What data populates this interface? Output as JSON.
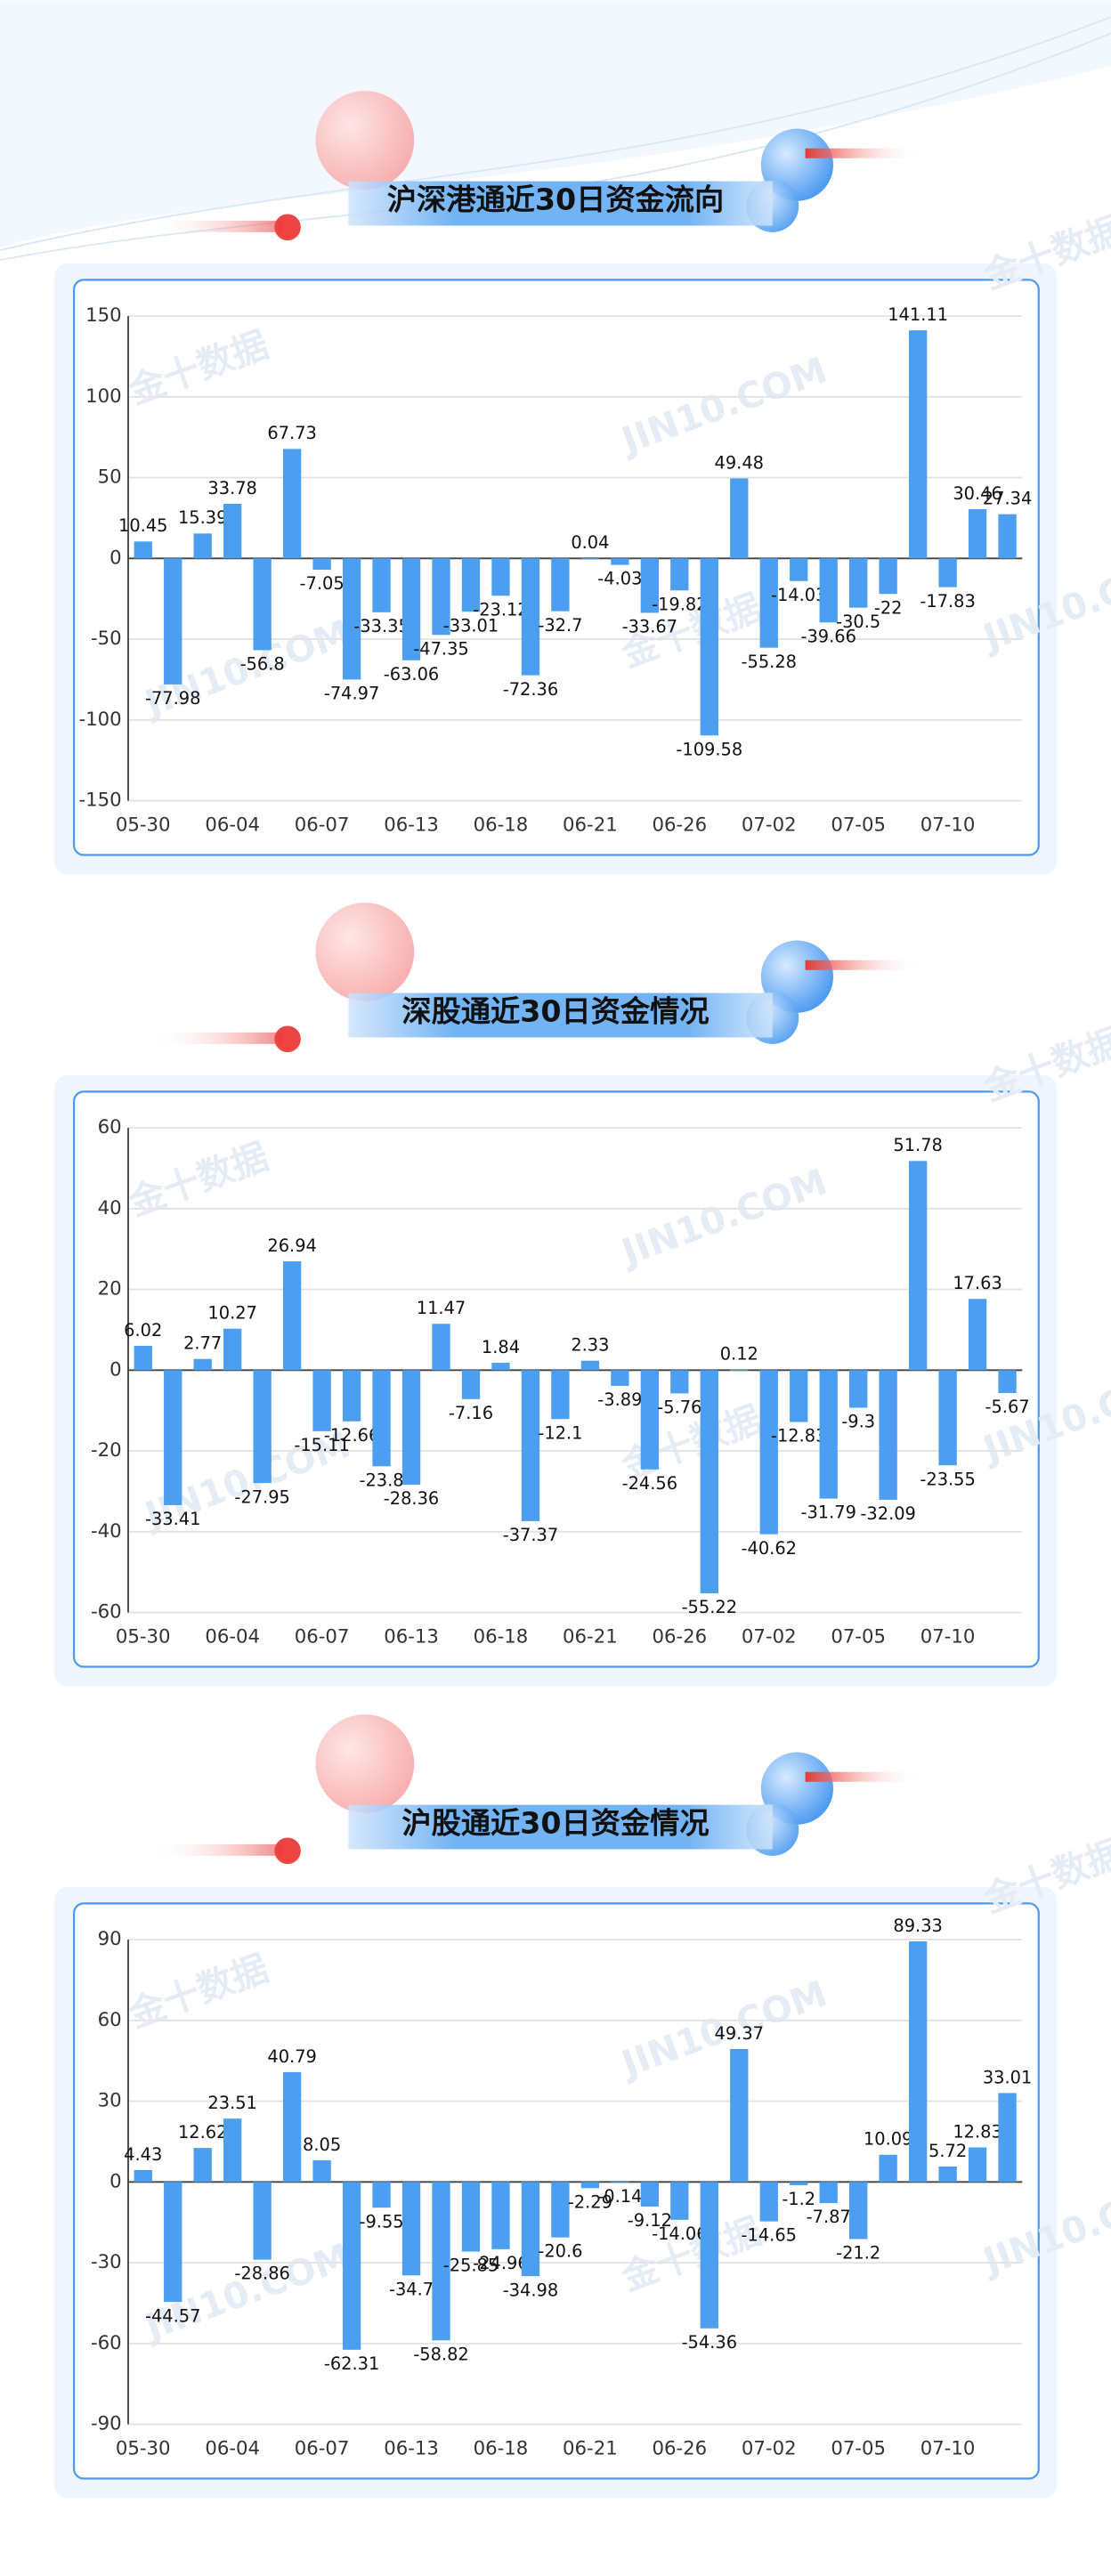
{
  "watermark": [
    "金十数据",
    "JIN10.COM"
  ],
  "chart_data": [
    {
      "type": "bar",
      "title": "沪深港通近30日资金流向",
      "categories": [
        "05-30",
        null,
        null,
        "06-04",
        null,
        null,
        "06-07",
        null,
        null,
        "06-13",
        null,
        null,
        "06-18",
        null,
        null,
        "06-21",
        null,
        null,
        "06-26",
        null,
        null,
        "07-02",
        null,
        null,
        "07-05",
        null,
        null,
        "07-10",
        null,
        null
      ],
      "values": [
        10.45,
        -77.98,
        15.39,
        33.78,
        -56.8,
        67.73,
        -7.05,
        -74.97,
        -33.35,
        -63.06,
        -47.35,
        -33.01,
        -23.12,
        -72.36,
        -32.7,
        0.04,
        -4.03,
        -33.67,
        -19.82,
        -109.58,
        49.48,
        -55.28,
        -14.03,
        -39.66,
        -30.5,
        -22,
        141.11,
        -17.83,
        30.46,
        27.34
      ],
      "color": "#4b9ef0",
      "ylim": [
        -150,
        150
      ],
      "yticks": [
        -150,
        -100,
        -50,
        0,
        50,
        100,
        150
      ],
      "grid": true
    },
    {
      "type": "bar",
      "title": "深股通近30日资金情况",
      "categories": [
        "05-30",
        null,
        null,
        "06-04",
        null,
        null,
        "06-07",
        null,
        null,
        "06-13",
        null,
        null,
        "06-18",
        null,
        null,
        "06-21",
        null,
        null,
        "06-26",
        null,
        null,
        "07-02",
        null,
        null,
        "07-05",
        null,
        null,
        "07-10",
        null,
        null
      ],
      "values": [
        6.02,
        -33.41,
        2.77,
        10.27,
        -27.95,
        26.94,
        -15.11,
        -12.66,
        -23.8,
        -28.36,
        11.47,
        -7.16,
        1.84,
        -37.37,
        -12.1,
        2.33,
        -3.89,
        -24.56,
        -5.76,
        -55.22,
        0.12,
        -40.62,
        -12.83,
        -31.79,
        -9.3,
        -32.09,
        51.78,
        -23.55,
        17.63,
        -5.67
      ],
      "color": "#4b9ef0",
      "ylim": [
        -60,
        60
      ],
      "yticks": [
        -60,
        -40,
        -20,
        0,
        20,
        40,
        60
      ],
      "grid": true
    },
    {
      "type": "bar",
      "title": "沪股通近30日资金情况",
      "categories": [
        "05-30",
        null,
        null,
        "06-04",
        null,
        null,
        "06-07",
        null,
        null,
        "06-13",
        null,
        null,
        "06-18",
        null,
        null,
        "06-21",
        null,
        null,
        "06-26",
        null,
        null,
        "07-02",
        null,
        null,
        "07-05",
        null,
        null,
        "07-10",
        null,
        null
      ],
      "values": [
        4.43,
        -44.57,
        12.62,
        23.51,
        -28.86,
        40.79,
        8.05,
        -62.31,
        -9.55,
        -34.7,
        -58.82,
        -25.85,
        -24.96,
        -34.98,
        -20.6,
        -2.29,
        -0.14,
        -9.12,
        -14.06,
        -54.36,
        49.37,
        -14.65,
        -1.2,
        -7.87,
        -21.2,
        10.09,
        89.33,
        5.72,
        12.83,
        33.01
      ],
      "color": "#4b9ef0",
      "ylim": [
        -90,
        90
      ],
      "yticks": [
        -90,
        -60,
        -30,
        0,
        30,
        60,
        90
      ],
      "grid": true
    }
  ]
}
